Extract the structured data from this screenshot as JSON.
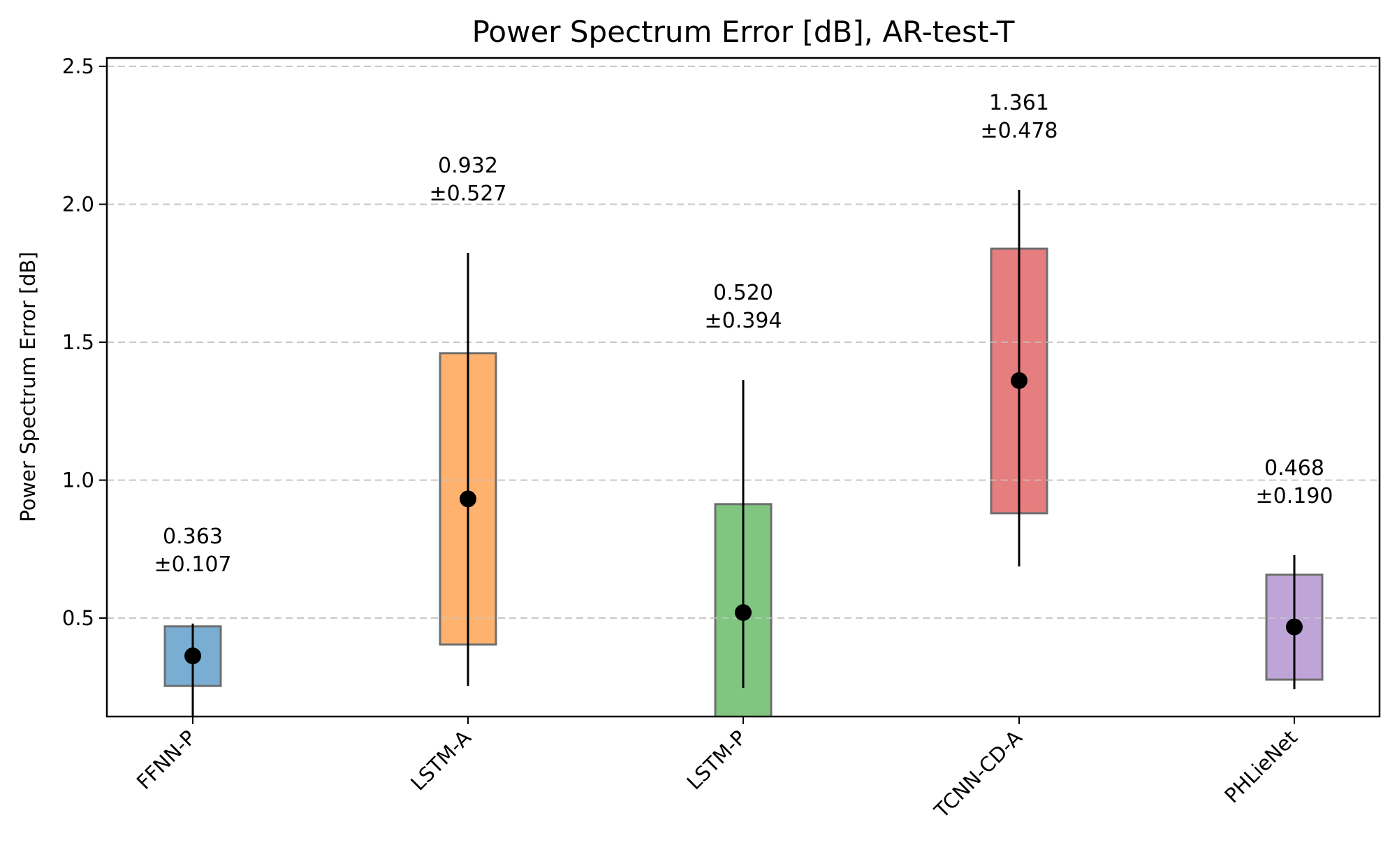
{
  "chart_data": {
    "type": "bar",
    "subtype": "floating-range-bar-with-errorbars",
    "title": "Power Spectrum Error [dB], AR-test-T",
    "xlabel": "",
    "ylabel": "Power Spectrum Error [dB]",
    "ylim": [
      0.143,
      2.53
    ],
    "yticks": [
      0.5,
      1.0,
      1.5,
      2.0,
      2.5
    ],
    "ytick_labels": [
      "0.5",
      "1.0",
      "1.5",
      "2.0",
      "2.5"
    ],
    "grid": {
      "axis": "y",
      "style": "dashed",
      "color": "#c8c8c8"
    },
    "legend": null,
    "categories": [
      "FFNN-P",
      "LSTM-A",
      "LSTM-P",
      "TCNN-CD-A",
      "PHLieNet"
    ],
    "xtick_rotation": 45,
    "series": [
      {
        "name": "mean",
        "values": [
          0.363,
          0.932,
          0.52,
          1.361,
          0.468
        ]
      },
      {
        "name": "std",
        "values": [
          0.107,
          0.527,
          0.394,
          0.478,
          0.19
        ]
      },
      {
        "name": "box_low",
        "values": [
          0.254,
          0.404,
          0.0,
          0.88,
          0.277
        ]
      },
      {
        "name": "box_high",
        "values": [
          0.47,
          1.46,
          0.913,
          1.839,
          0.657
        ]
      },
      {
        "name": "whisker_low",
        "values": [
          0.0,
          0.254,
          0.247,
          0.687,
          0.242
        ]
      },
      {
        "name": "whisker_high",
        "values": [
          0.48,
          1.824,
          1.363,
          2.052,
          0.728
        ]
      }
    ],
    "annotations": [
      {
        "category": "FFNN-P",
        "line1": "0.363",
        "line2": "±0.107"
      },
      {
        "category": "LSTM-A",
        "line1": "0.932",
        "line2": "±0.527"
      },
      {
        "category": "LSTM-P",
        "line1": "0.520",
        "line2": "±0.394"
      },
      {
        "category": "TCNN-CD-A",
        "line1": "1.361",
        "line2": "±0.478"
      },
      {
        "category": "PHLieNet",
        "line1": "0.468",
        "line2": "±0.190"
      }
    ],
    "colors": [
      "#79add2",
      "#ffb26e",
      "#80c680",
      "#e67d7e",
      "#bfa4d7"
    ],
    "box_edge_color": "#6e6e6e"
  }
}
